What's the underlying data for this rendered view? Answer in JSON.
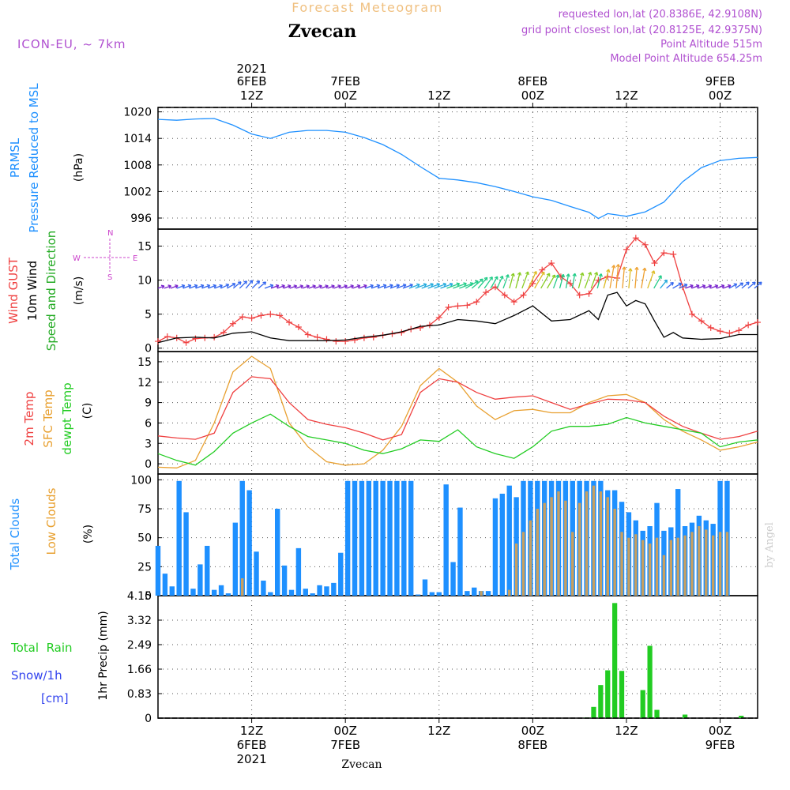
{
  "header": {
    "title": "Forecast Meteogram",
    "location": "Zvecan",
    "model": "ICON-EU, ~ 7km",
    "requested": "requested lon,lat (20.8386E, 42.9108N)",
    "grid": "grid point closest lon,lat (20.8125E, 42.9375N)",
    "point_alt": "Point Altitude 515m",
    "model_alt": "Model Point Altitude 654.25m",
    "footer": "Zvecan",
    "credit": "by Angel"
  },
  "colors": {
    "pressure": "#1e90ff",
    "gust": "#ef4040",
    "wind": "#000000",
    "temp": "#ef4040",
    "sfc": "#e8a030",
    "dewpt": "#22cc22",
    "total_cloud": "#1e90ff",
    "low_cloud": "#c8a060",
    "rain": "#22cc22",
    "snow": "#3344ee",
    "wind_label": "#22aa22",
    "compass": "#cc44cc",
    "header_purple": "#b050d0",
    "title_orange": "#f0c080"
  },
  "time_axis": {
    "start_hour": -10,
    "end_hour": 54,
    "top_ticks": [
      {
        "h": 0,
        "l1": "2021",
        "l2": "6FEB",
        "l3": "12Z"
      },
      {
        "h": 10,
        "l1": "",
        "l2": "7FEB",
        "l3": "00Z"
      },
      {
        "h": 20,
        "l1": "",
        "l2": "",
        "l3": "12Z"
      },
      {
        "h": 30,
        "l1": "",
        "l2": "8FEB",
        "l3": "00Z"
      },
      {
        "h": 40,
        "l1": "",
        "l2": "",
        "l3": "12Z"
      },
      {
        "h": 50,
        "l1": "",
        "l2": "9FEB",
        "l3": "00Z"
      }
    ],
    "bottom_ticks": [
      {
        "h": 0,
        "l1": "12Z",
        "l2": "6FEB",
        "l3": "2021"
      },
      {
        "h": 10,
        "l1": "00Z",
        "l2": "7FEB",
        "l3": ""
      },
      {
        "h": 20,
        "l1": "12Z",
        "l2": "",
        "l3": ""
      },
      {
        "h": 30,
        "l1": "00Z",
        "l2": "8FEB",
        "l3": ""
      },
      {
        "h": 40,
        "l1": "12Z",
        "l2": "",
        "l3": ""
      },
      {
        "h": 50,
        "l1": "00Z",
        "l2": "9FEB",
        "l3": ""
      }
    ]
  },
  "panels": {
    "pressure": {
      "label1": "PRMSL",
      "label2": "Pressure Reduced to MSL",
      "unit": "(hPa)"
    },
    "wind": {
      "label1": "Wind GUST",
      "label2": "10m Wind",
      "label3": "Speed and Direction",
      "unit": "(m/s)",
      "compass_n": "N",
      "compass_s": "S",
      "compass_w": "W",
      "compass_e": "E"
    },
    "temp": {
      "label1": "2m Temp",
      "label2": "SFC Temp",
      "label3": "dewpt Temp",
      "unit": "(C)"
    },
    "cloud": {
      "label1": "Total Clouds",
      "label2": "Low Clouds",
      "unit": "(%)"
    },
    "precip": {
      "label1": "Total  Rain",
      "label2": "Snow/1h",
      "label3": "[cm]",
      "unit": "1hr Precip (mm)"
    }
  },
  "chart_data": [
    {
      "type": "line",
      "title": "PRMSL Pressure Reduced to MSL",
      "ylabel": "(hPa)",
      "ylim": [
        993.5,
        1021
      ],
      "yticks": [
        996,
        1002,
        1008,
        1014,
        1020
      ],
      "grid": true,
      "series": [
        {
          "name": "PRMSL",
          "x": [
            -10,
            -8,
            -6,
            -4,
            -2,
            0,
            2,
            4,
            6,
            8,
            10,
            12,
            14,
            16,
            18,
            20,
            22,
            24,
            26,
            28,
            30,
            32,
            34,
            36,
            37,
            38,
            40,
            42,
            44,
            46,
            48,
            50,
            52,
            54
          ],
          "values": [
            1018.3,
            1018.1,
            1018.4,
            1018.5,
            1017.0,
            1015.0,
            1014.0,
            1015.4,
            1015.8,
            1015.8,
            1015.4,
            1014.2,
            1012.6,
            1010.4,
            1007.6,
            1005.0,
            1004.6,
            1004.0,
            1003.1,
            1002.0,
            1000.8,
            1000.0,
            998.6,
            997.3,
            995.9,
            997.0,
            996.4,
            997.4,
            999.6,
            1004.2,
            1007.4,
            1009.0,
            1009.5,
            1009.7
          ]
        }
      ]
    },
    {
      "type": "line",
      "title": "Wind GUST / 10m Wind Speed",
      "ylabel": "(m/s)",
      "ylim": [
        -0.5,
        17.5
      ],
      "yticks": [
        0,
        5,
        10,
        15
      ],
      "grid": true,
      "series": [
        {
          "name": "Wind GUST",
          "x": [
            -10,
            -9,
            -8,
            -7,
            -6,
            -5,
            -4,
            -3,
            -2,
            -1,
            0,
            1,
            2,
            3,
            4,
            5,
            6,
            7,
            8,
            9,
            10,
            11,
            12,
            13,
            14,
            15,
            16,
            17,
            18,
            19,
            20,
            21,
            22,
            23,
            24,
            25,
            26,
            27,
            28,
            29,
            30,
            31,
            32,
            33,
            34,
            35,
            36,
            37,
            38,
            39,
            40,
            41,
            42,
            43,
            44,
            45,
            46,
            47,
            48,
            49,
            50,
            51,
            52,
            53,
            54
          ],
          "values": [
            1.0,
            1.7,
            1.5,
            0.8,
            1.4,
            1.5,
            1.6,
            2.3,
            3.6,
            4.6,
            4.4,
            4.8,
            5.0,
            4.8,
            3.8,
            3.1,
            2.0,
            1.6,
            1.3,
            1.0,
            1.0,
            1.2,
            1.5,
            1.6,
            1.9,
            2.1,
            2.3,
            2.8,
            3.0,
            3.4,
            4.5,
            6.0,
            6.2,
            6.3,
            6.8,
            8.2,
            9.0,
            7.8,
            6.8,
            7.8,
            9.5,
            11.5,
            12.5,
            10.5,
            9.5,
            7.8,
            8.0,
            10.0,
            10.5,
            10.3,
            14.5,
            16.2,
            15.2,
            12.5,
            14.0,
            13.8,
            9.0,
            5.0,
            4.0,
            3.0,
            2.5,
            2.2,
            2.6,
            3.4,
            3.8
          ]
        },
        {
          "name": "10m Wind",
          "x": [
            -10,
            -8,
            -6,
            -4,
            -2,
            0,
            2,
            4,
            6,
            8,
            10,
            12,
            14,
            16,
            18,
            20,
            22,
            24,
            26,
            28,
            30,
            32,
            34,
            36,
            37,
            38,
            39,
            40,
            41,
            42,
            43,
            44,
            45,
            46,
            48,
            50,
            52,
            54
          ],
          "values": [
            0.8,
            1.5,
            1.6,
            1.5,
            2.2,
            2.4,
            1.5,
            1.1,
            1.1,
            1.1,
            1.2,
            1.6,
            1.9,
            2.4,
            3.2,
            3.4,
            4.2,
            4.0,
            3.6,
            4.8,
            6.2,
            4.0,
            4.2,
            5.5,
            4.2,
            7.8,
            8.2,
            6.2,
            7.0,
            6.5,
            4.0,
            1.6,
            2.3,
            1.5,
            1.3,
            1.4,
            2.0,
            2.0
          ]
        }
      ]
    },
    {
      "type": "line",
      "title": "2m Temp / SFC Temp / dewpt Temp",
      "ylabel": "(C)",
      "ylim": [
        -1.5,
        16.5
      ],
      "yticks": [
        0,
        3,
        6,
        9,
        12,
        15
      ],
      "grid": true,
      "series": [
        {
          "name": "2m Temp",
          "x": [
            -10,
            -8,
            -6,
            -4,
            -2,
            0,
            2,
            4,
            6,
            8,
            10,
            12,
            14,
            16,
            18,
            20,
            22,
            24,
            26,
            28,
            30,
            32,
            34,
            36,
            38,
            40,
            42,
            44,
            46,
            48,
            50,
            52,
            54
          ],
          "values": [
            4.1,
            3.8,
            3.6,
            4.5,
            10.5,
            12.8,
            12.5,
            9.0,
            6.5,
            5.8,
            5.3,
            4.5,
            3.5,
            4.3,
            10.5,
            12.5,
            12.0,
            10.5,
            9.5,
            9.8,
            10.0,
            9.0,
            8.0,
            8.8,
            9.5,
            9.4,
            9.0,
            7.0,
            5.5,
            4.5,
            3.6,
            4.0,
            4.8
          ]
        },
        {
          "name": "SFC Temp",
          "x": [
            -10,
            -8,
            -6,
            -4,
            -2,
            0,
            2,
            4,
            6,
            8,
            10,
            12,
            14,
            16,
            18,
            20,
            22,
            24,
            26,
            28,
            30,
            32,
            34,
            36,
            38,
            40,
            42,
            44,
            46,
            48,
            50,
            52,
            54
          ],
          "values": [
            -0.5,
            -0.6,
            0.5,
            6.0,
            13.5,
            15.8,
            14.0,
            6.0,
            2.5,
            0.3,
            -0.2,
            0.0,
            2.0,
            5.5,
            11.5,
            14.0,
            12.0,
            8.5,
            6.5,
            7.8,
            8.0,
            7.5,
            7.5,
            9.0,
            10.0,
            10.2,
            9.0,
            6.5,
            4.8,
            3.5,
            2.0,
            2.5,
            3.2
          ]
        },
        {
          "name": "dewpt Temp",
          "x": [
            -10,
            -8,
            -6,
            -4,
            -2,
            0,
            2,
            4,
            6,
            8,
            10,
            12,
            14,
            16,
            18,
            20,
            22,
            24,
            26,
            28,
            30,
            32,
            34,
            36,
            38,
            40,
            42,
            44,
            46,
            48,
            50,
            52,
            54
          ],
          "values": [
            1.5,
            0.5,
            -0.2,
            1.8,
            4.5,
            6.0,
            7.3,
            5.5,
            4.0,
            3.5,
            3.0,
            2.0,
            1.5,
            2.2,
            3.5,
            3.3,
            5.0,
            2.5,
            1.5,
            0.8,
            2.5,
            4.8,
            5.5,
            5.5,
            5.8,
            6.8,
            6.0,
            5.5,
            5.0,
            4.5,
            2.5,
            3.2,
            3.5
          ]
        }
      ]
    },
    {
      "type": "bar",
      "title": "Total Clouds / Low Clouds",
      "ylabel": "(%)",
      "ylim": [
        0,
        105
      ],
      "yticks": [
        0,
        25,
        50,
        75,
        100
      ],
      "grid": true,
      "series": [
        {
          "name": "Total Clouds",
          "start_hour": -10,
          "values": [
            43,
            19,
            8,
            99,
            72,
            6,
            27,
            43,
            5,
            9,
            2,
            63,
            99,
            91,
            38,
            13,
            3,
            75,
            26,
            5,
            41,
            6,
            2,
            9,
            8,
            11,
            37,
            99,
            99,
            99,
            99,
            99,
            99,
            99,
            99,
            99,
            99,
            1,
            14,
            3,
            3,
            96,
            29,
            76,
            4,
            7,
            4,
            4,
            84,
            88,
            95,
            85,
            99,
            99,
            99,
            99,
            99,
            99,
            99,
            99,
            99,
            99,
            99,
            99,
            91,
            91,
            81,
            72,
            65,
            56,
            60,
            80,
            56,
            59,
            92,
            60,
            63,
            69,
            65,
            62,
            99,
            99
          ]
        },
        {
          "name": "Low Clouds",
          "start_hour": -10,
          "values": [
            0,
            0,
            0,
            0,
            0,
            0,
            0,
            0,
            0,
            0,
            0,
            0,
            15,
            0,
            0,
            0,
            0,
            0,
            0,
            0,
            0,
            0,
            0,
            0,
            0,
            0,
            0,
            0,
            0,
            0,
            0,
            0,
            0,
            0,
            0,
            0,
            0,
            0,
            0,
            0,
            0,
            0,
            0,
            0,
            0,
            0,
            7,
            0,
            0,
            0,
            5,
            45,
            55,
            65,
            75,
            80,
            85,
            90,
            82,
            55,
            80,
            90,
            95,
            90,
            85,
            75,
            55,
            50,
            53,
            48,
            45,
            50,
            35,
            48,
            50,
            52,
            55,
            60,
            57,
            52,
            55,
            55
          ]
        }
      ]
    },
    {
      "type": "bar",
      "title": "1hr Precip",
      "ylabel": "1hr Precip (mm)",
      "ylim": [
        0,
        4.15
      ],
      "yticks": [
        0,
        0.83,
        1.66,
        2.49,
        3.32,
        4.15
      ],
      "grid": true,
      "series": [
        {
          "name": "Total Rain",
          "start_hour": -10,
          "values": [
            0,
            0,
            0,
            0,
            0,
            0,
            0,
            0,
            0,
            0,
            0,
            0,
            0,
            0,
            0,
            0,
            0,
            0,
            0,
            0,
            0,
            0,
            0,
            0,
            0,
            0,
            0,
            0,
            0,
            0,
            0,
            0,
            0,
            0,
            0,
            0,
            0,
            0,
            0,
            0,
            0,
            0,
            0,
            0,
            0,
            0,
            0,
            0,
            0,
            0,
            0,
            0,
            0,
            0,
            0,
            0,
            0,
            0,
            0,
            0,
            0,
            0.02,
            0.38,
            1.12,
            1.62,
            3.9,
            1.6,
            0,
            0,
            0.95,
            2.45,
            0.28,
            0,
            0,
            0,
            0.12,
            0,
            0,
            0,
            0,
            0,
            0,
            0,
            0.08,
            0
          ]
        },
        {
          "name": "Snow/1h",
          "start_hour": -10,
          "values": []
        }
      ]
    }
  ],
  "wind_barbs": {
    "interval_hours": 1,
    "start_hour": -10,
    "dirs_deg": [
      250,
      250,
      250,
      250,
      250,
      250,
      250,
      250,
      250,
      250,
      245,
      240,
      230,
      225,
      220,
      225,
      230,
      250,
      250,
      250,
      250,
      250,
      250,
      250,
      250,
      250,
      250,
      250,
      250,
      250,
      250,
      250,
      250,
      250,
      250,
      250,
      250,
      250,
      250,
      250,
      250,
      250,
      250,
      250,
      250,
      250,
      250,
      250,
      250,
      240,
      230,
      220,
      215,
      210,
      205,
      200,
      195,
      195,
      200,
      205,
      210,
      210,
      210,
      200,
      195,
      190,
      190,
      195,
      200,
      200,
      195,
      195,
      190,
      185,
      185,
      185,
      185,
      190,
      200,
      210,
      220,
      230,
      240,
      245,
      250,
      250,
      250,
      250,
      250,
      250,
      250,
      240,
      235,
      230,
      230,
      230
    ]
  }
}
